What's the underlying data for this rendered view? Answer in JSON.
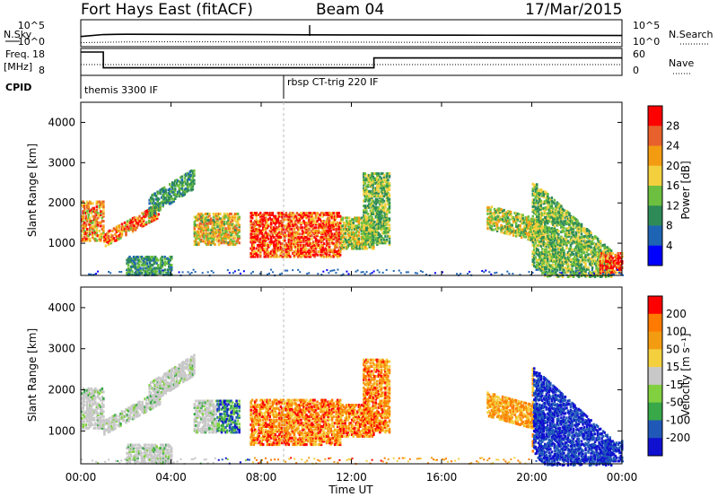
{
  "header": {
    "station": "Fort Hays East (fitACF)",
    "beam": "Beam 04",
    "date": "17/Mar/2015"
  },
  "noise_panel": {
    "left_label": "N.Sky",
    "right_label": "N.Search",
    "left_ticks": [
      "10^5",
      "10^0"
    ],
    "right_ticks": [
      "10^5",
      "10^0"
    ]
  },
  "freq_panel": {
    "left_label_line1": "Freq.",
    "left_label_line2": "[MHz]",
    "left_ticks": [
      "18",
      "8"
    ],
    "right_label": "Nave",
    "right_ticks": [
      "60",
      "0"
    ]
  },
  "cpid": {
    "label": "CPID",
    "modes": [
      {
        "name": "themis 3300 IF",
        "start_hour": 0
      },
      {
        "name": "rbsp CT-trig 220 IF",
        "start_hour": 9
      }
    ]
  },
  "power_panel": {
    "ylabel": "Slant Range [km]",
    "yticks": [
      "4000",
      "3000",
      "2000",
      "1000"
    ],
    "colorbar_label": "Power [dB]",
    "colorbar_ticks": [
      "28",
      "24",
      "20",
      "16",
      "12",
      "8",
      "4"
    ],
    "colors": [
      "#0000ff",
      "#1e64b4",
      "#2e8b57",
      "#6cbf3f",
      "#f4d03f",
      "#f39c12",
      "#e8602c",
      "#ff0000"
    ]
  },
  "velocity_panel": {
    "ylabel": "Slant Range [km]",
    "yticks": [
      "4000",
      "3000",
      "2000",
      "1000"
    ],
    "colorbar_label": "Velocity [m s⁻¹]",
    "colorbar_ticks": [
      "200",
      "100",
      "50",
      "15",
      "-15",
      "-50",
      "-100",
      "-200"
    ],
    "colors": [
      "#1010d0",
      "#2058b8",
      "#38a848",
      "#80d040",
      "#c8c8c8",
      "#f4d03f",
      "#f39c12",
      "#ff7a00",
      "#ff0000"
    ]
  },
  "time_axis": {
    "xlabel": "Time UT",
    "xticks": [
      "00:00",
      "04:00",
      "08:00",
      "12:00",
      "16:00",
      "20:00",
      "00:00"
    ]
  },
  "chart_data": [
    {
      "type": "line",
      "panel": "noise",
      "series": [
        {
          "name": "N.Sky",
          "x": [
            0,
            1,
            2,
            4,
            6,
            8,
            9,
            10,
            12,
            14,
            16,
            18,
            20,
            22,
            24
          ],
          "y": [
            30,
            120,
            150,
            140,
            130,
            120,
            110,
            100,
            90,
            85,
            80,
            75,
            70,
            65,
            60
          ]
        },
        {
          "name": "N.Search",
          "x": [
            0,
            2,
            4,
            8,
            12,
            16,
            20,
            24
          ],
          "y": [
            5,
            8,
            9,
            8,
            7,
            6,
            5,
            5
          ]
        }
      ],
      "xlim": [
        0,
        24
      ]
    },
    {
      "type": "line",
      "panel": "frequency",
      "series": [
        {
          "name": "Freq.",
          "x": [
            0,
            1,
            1,
            13,
            13,
            24
          ],
          "y": [
            18,
            18,
            10,
            10,
            15,
            15
          ]
        },
        {
          "name": "Nave",
          "x": [
            0,
            24
          ],
          "y": [
            13,
            13
          ]
        }
      ],
      "xlim": [
        0,
        24
      ]
    },
    {
      "type": "heatmap",
      "panel": "power",
      "xlim": [
        0,
        24
      ],
      "ylim": [
        200,
        4500
      ]
    },
    {
      "type": "heatmap",
      "panel": "velocity",
      "xlim": [
        0,
        24
      ],
      "ylim": [
        200,
        4500
      ]
    }
  ]
}
